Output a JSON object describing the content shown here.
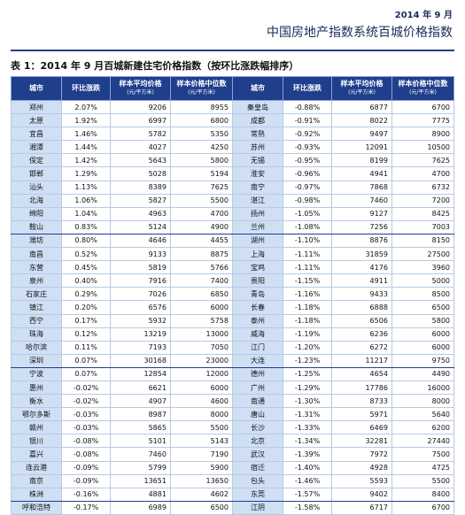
{
  "header": {
    "date": "2014 年 9 月",
    "title": "中国房地产指数系统百城价格指数"
  },
  "table": {
    "caption": "表 1：2014 年 9 月百城新建住宅价格指数（按环比涨跌幅排序）",
    "columns": [
      {
        "name": "城市"
      },
      {
        "name": "环比涨跌"
      },
      {
        "name": "样本平均价格",
        "unit": "(元/平方米)"
      },
      {
        "name": "样本价格中位数",
        "unit": "(元/平方米)"
      },
      {
        "name": "城市"
      },
      {
        "name": "环比涨跌"
      },
      {
        "name": "样本平均价格",
        "unit": "(元/平方米)"
      },
      {
        "name": "样本价格中位数",
        "unit": "(元/平方米)"
      }
    ],
    "rows": [
      [
        "郑州",
        "2.07%",
        "9206",
        "8955",
        "秦皇岛",
        "-0.88%",
        "6877",
        "6700"
      ],
      [
        "太原",
        "1.92%",
        "6997",
        "6800",
        "成都",
        "-0.91%",
        "8022",
        "7775"
      ],
      [
        "宜昌",
        "1.46%",
        "5782",
        "5350",
        "常熟",
        "-0.92%",
        "9497",
        "8900"
      ],
      [
        "湘潭",
        "1.44%",
        "4027",
        "4250",
        "苏州",
        "-0.93%",
        "12091",
        "10500"
      ],
      [
        "保定",
        "1.42%",
        "5643",
        "5800",
        "无锡",
        "-0.95%",
        "8199",
        "7625"
      ],
      [
        "邯郸",
        "1.29%",
        "5028",
        "5194",
        "淮安",
        "-0.96%",
        "4941",
        "4700"
      ],
      [
        "汕头",
        "1.13%",
        "8389",
        "7625",
        "南宁",
        "-0.97%",
        "7868",
        "6732"
      ],
      [
        "北海",
        "1.06%",
        "5827",
        "5500",
        "湛江",
        "-0.98%",
        "7460",
        "7200"
      ],
      [
        "绵阳",
        "1.04%",
        "4963",
        "4700",
        "扬州",
        "-1.05%",
        "9127",
        "8425"
      ],
      [
        "鞍山",
        "0.83%",
        "5124",
        "4900",
        "兰州",
        "-1.08%",
        "7256",
        "7003"
      ],
      [
        "潍坊",
        "0.80%",
        "4646",
        "4455",
        "湖州",
        "-1.10%",
        "8876",
        "8150"
      ],
      [
        "南昌",
        "0.52%",
        "9133",
        "8875",
        "上海",
        "-1.11%",
        "31859",
        "27500"
      ],
      [
        "东营",
        "0.45%",
        "5819",
        "5766",
        "宝鸡",
        "-1.11%",
        "4176",
        "3960"
      ],
      [
        "泉州",
        "0.40%",
        "7916",
        "7400",
        "贵阳",
        "-1.15%",
        "4911",
        "5000"
      ],
      [
        "石家庄",
        "0.29%",
        "7026",
        "6850",
        "青岛",
        "-1.16%",
        "9433",
        "8500"
      ],
      [
        "镇江",
        "0.20%",
        "6576",
        "6000",
        "长春",
        "-1.18%",
        "6888",
        "6500"
      ],
      [
        "西宁",
        "0.17%",
        "5932",
        "5758",
        "泰州",
        "-1.18%",
        "6506",
        "5800"
      ],
      [
        "珠海",
        "0.12%",
        "13219",
        "13000",
        "威海",
        "-1.19%",
        "6236",
        "6000"
      ],
      [
        "哈尔滨",
        "0.11%",
        "7193",
        "7050",
        "江门",
        "-1.20%",
        "6272",
        "6000"
      ],
      [
        "深圳",
        "0.07%",
        "30168",
        "23000",
        "大连",
        "-1.23%",
        "11217",
        "9750"
      ],
      [
        "宁波",
        "0.07%",
        "12854",
        "12000",
        "德州",
        "-1.25%",
        "4654",
        "4490"
      ],
      [
        "惠州",
        "-0.02%",
        "6621",
        "6000",
        "广州",
        "-1.29%",
        "17786",
        "16000"
      ],
      [
        "衡水",
        "-0.02%",
        "4907",
        "4600",
        "南通",
        "-1.30%",
        "8733",
        "8000"
      ],
      [
        "鄂尔多斯",
        "-0.03%",
        "8987",
        "8000",
        "唐山",
        "-1.31%",
        "5971",
        "5640"
      ],
      [
        "赣州",
        "-0.03%",
        "5865",
        "5500",
        "长沙",
        "-1.33%",
        "6469",
        "6200"
      ],
      [
        "银川",
        "-0.08%",
        "5101",
        "5143",
        "北京",
        "-1.34%",
        "32281",
        "27440"
      ],
      [
        "嘉兴",
        "-0.08%",
        "7460",
        "7190",
        "武汉",
        "-1.39%",
        "7972",
        "7500"
      ],
      [
        "连云港",
        "-0.09%",
        "5799",
        "5900",
        "宿迁",
        "-1.40%",
        "4928",
        "4725"
      ],
      [
        "南京",
        "-0.09%",
        "13651",
        "13650",
        "包头",
        "-1.46%",
        "5593",
        "5500"
      ],
      [
        "株洲",
        "-0.16%",
        "4881",
        "4602",
        "东莞",
        "-1.57%",
        "9402",
        "8400"
      ],
      [
        "呼和浩特",
        "-0.17%",
        "6989",
        "6500",
        "江阴",
        "-1.58%",
        "6717",
        "6700"
      ]
    ]
  }
}
